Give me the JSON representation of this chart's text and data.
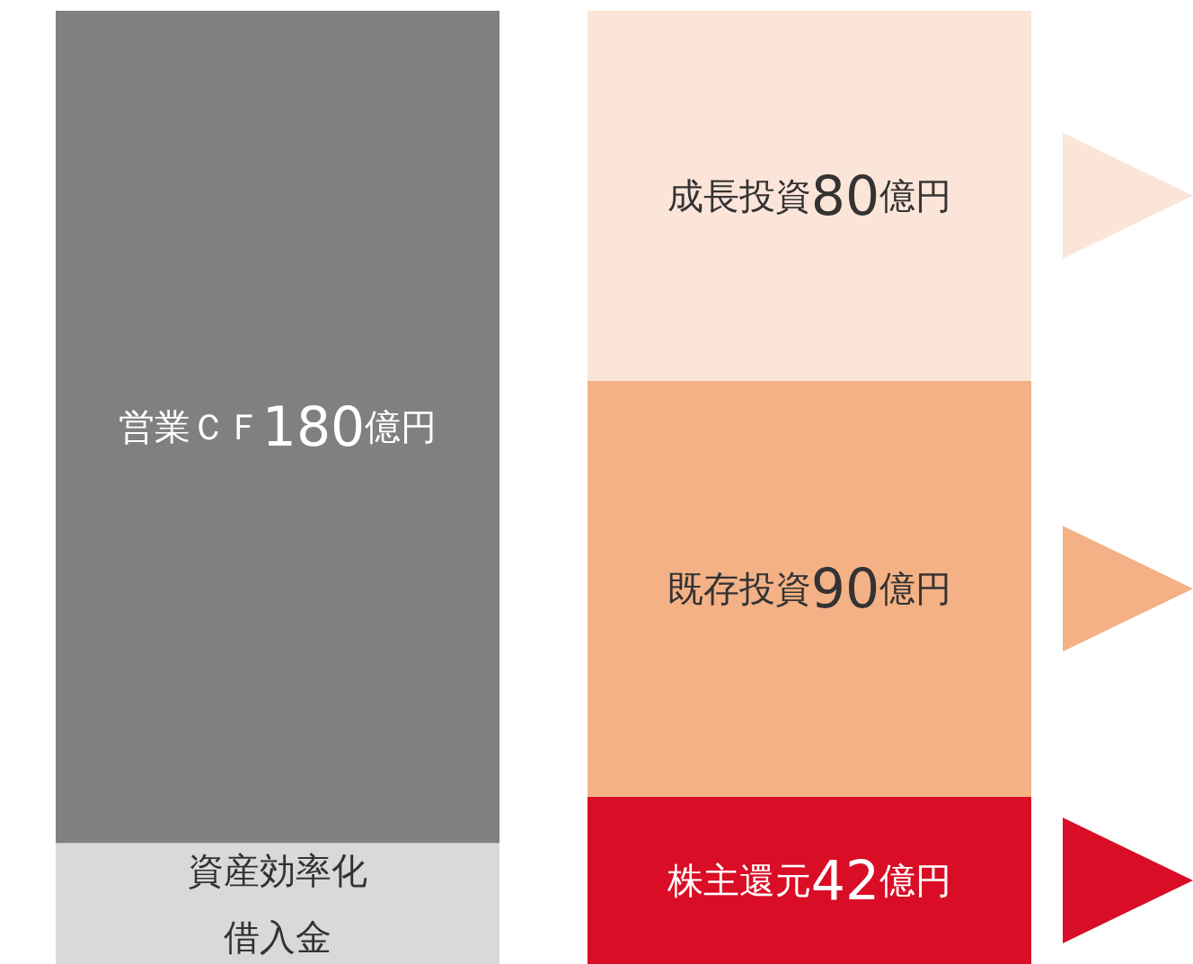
{
  "chart_data": {
    "type": "bar",
    "stacked": true,
    "categories": [
      null,
      null
    ],
    "series": [
      {
        "values": [
          32,
          42
        ],
        "colors": [
          "#d9d9d9",
          "#d90d25"
        ],
        "value_labels": [
          [
            "資産効率化",
            "借入金"
          ],
          "株主還元42億円"
        ]
      },
      {
        "values": [
          180,
          90
        ],
        "colors": [
          "#808080",
          "#f3b185"
        ],
        "value_labels": [
          "営業ＣＦ180億円",
          "既存投資90億円"
        ]
      },
      {
        "values": [
          null,
          80
        ],
        "colors": [
          null,
          "#fbe5d8"
        ],
        "value_labels": [
          null,
          "成長投資80億円"
        ]
      }
    ]
  }
}
